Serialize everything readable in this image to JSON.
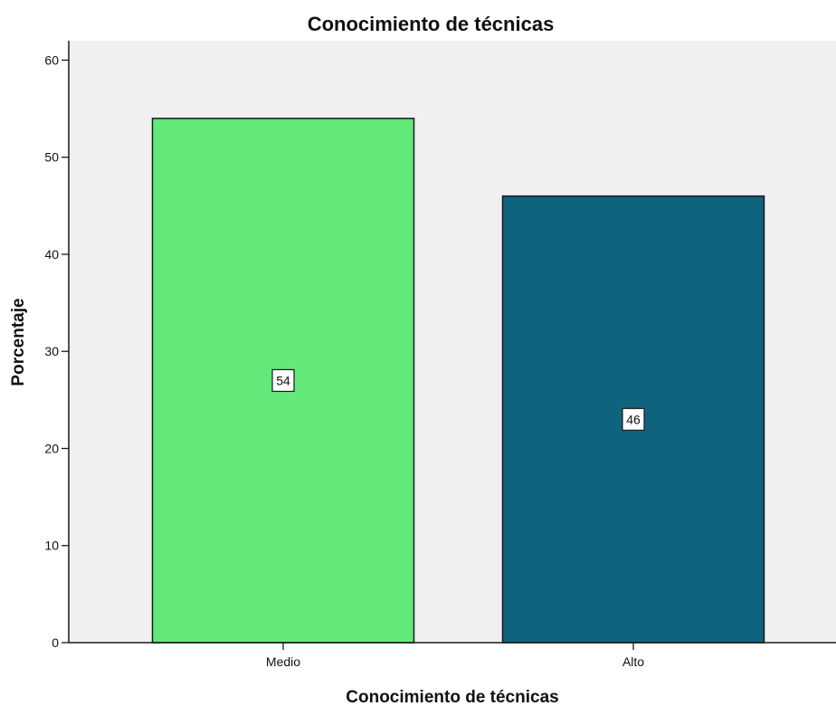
{
  "chart_data": {
    "type": "bar",
    "title": "Conocimiento de técnicas",
    "xlabel": "Conocimiento de técnicas",
    "ylabel": "Porcentaje",
    "categories": [
      "Medio",
      "Alto"
    ],
    "values": [
      54,
      46
    ],
    "data_labels": [
      "54",
      "46"
    ],
    "ylim": [
      0,
      62
    ],
    "yticks": [
      0,
      10,
      20,
      30,
      40,
      50,
      60
    ],
    "ytick_labels": [
      "0",
      "10",
      "20",
      "30",
      "40",
      "50",
      "60"
    ],
    "grid": false,
    "colors": {
      "plot_background": "#f0f0f0",
      "bars": [
        "#62e97a",
        "#10637d"
      ],
      "bar_outline": "#1a1a1a",
      "axis": "#1a1a1a",
      "label_box_fill": "#ffffff"
    }
  }
}
